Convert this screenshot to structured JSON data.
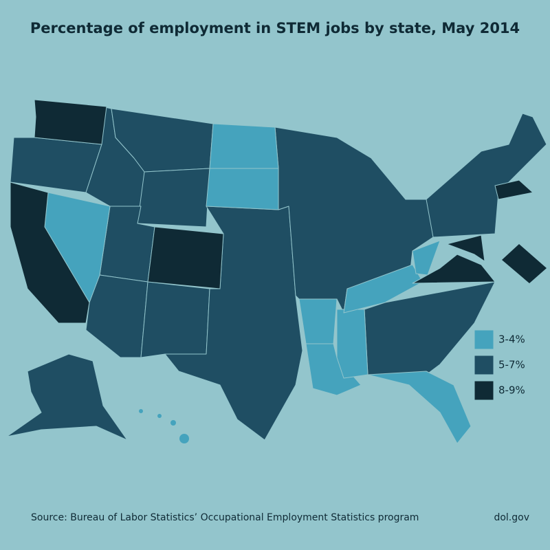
{
  "title": "Percentage of employment in STEM jobs by state, May 2014",
  "legend": [
    {
      "label": "3-4%",
      "color": "#45a3bd"
    },
    {
      "label": "5-7%",
      "color": "#1f4e63"
    },
    {
      "label": "8-9%",
      "color": "#0f2a35"
    }
  ],
  "source": "Source: Bureau of Labor Statistics’ Occupational Employment Statistics program",
  "credit": "dol.gov"
}
